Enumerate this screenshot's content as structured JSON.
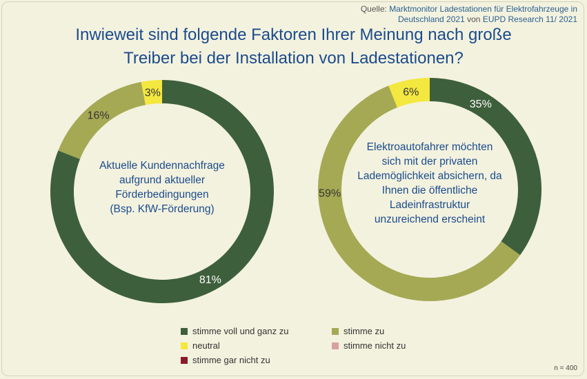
{
  "source": {
    "label": "Quelle:",
    "line1": "Marktmonitor Ladestationen für Elektrofahrzeuge in",
    "line2a": "Deutschland 2021",
    "line2b": "von",
    "line2c": "EUPD Research 11/ 2021"
  },
  "title": {
    "line1": "Inwieweit sind folgende Faktoren Ihrer Meinung nach große",
    "line2": "Treiber bei der Installation von Ladestationen?"
  },
  "legend": {
    "items": [
      {
        "label": "stimme voll und ganz zu",
        "color": "#3e5f3b"
      },
      {
        "label": "stimme zu",
        "color": "#a5a954"
      },
      {
        "label": "neutral",
        "color": "#f4e73f"
      },
      {
        "label": "stimme nicht zu",
        "color": "#d8a0a3"
      },
      {
        "label": "stimme gar nicht zu",
        "color": "#8b1a2b"
      }
    ]
  },
  "note": "n = 400",
  "chart_data": [
    {
      "type": "pie",
      "donut": true,
      "center_label": [
        "Aktuelle Kundennachfrage",
        "aufgrund aktueller",
        "Förderbedingungen",
        "(Bsp. KfW-Förderung)"
      ],
      "categories": [
        "stimme voll und ganz zu",
        "stimme zu",
        "neutral"
      ],
      "values": [
        81,
        16,
        3
      ],
      "value_labels": [
        "81%",
        "16%",
        "3%"
      ],
      "colors": [
        "#3e5f3b",
        "#a5a954",
        "#f4e73f"
      ]
    },
    {
      "type": "pie",
      "donut": true,
      "center_label": [
        "Elektroautofahrer möchten",
        "sich mit der privaten",
        "Lademöglichkeit absichern, da",
        "Ihnen die öffentliche",
        "Ladeinfrastruktur",
        "unzureichend erscheint"
      ],
      "categories": [
        "stimme voll und ganz zu",
        "stimme zu",
        "neutral"
      ],
      "values": [
        35,
        59,
        6
      ],
      "value_labels": [
        "35%",
        "59%",
        "6%"
      ],
      "colors": [
        "#3e5f3b",
        "#a5a954",
        "#f4e73f"
      ]
    }
  ]
}
